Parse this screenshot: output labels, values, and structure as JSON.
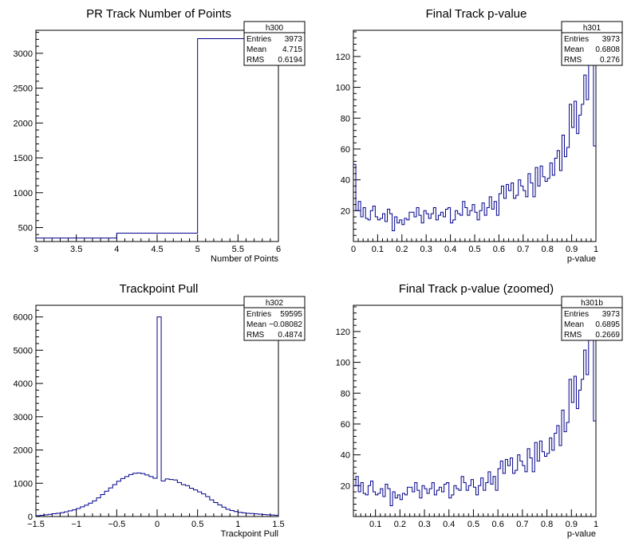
{
  "chart_data": [
    {
      "id": "h300",
      "type": "histogram",
      "title": "PR Track Number of Points",
      "xlabel": "Number of Points",
      "ylabel": "",
      "xlim": [
        3,
        6
      ],
      "ylim": [
        300,
        3330
      ],
      "x_ticks": [
        "3",
        "3.5",
        "4",
        "4.5",
        "5",
        "5.5",
        "6"
      ],
      "x_tick_values": [
        3,
        3.5,
        4,
        4.5,
        5,
        5.5,
        6
      ],
      "y_ticks": [
        "500",
        "1000",
        "1500",
        "2000",
        "2500",
        "3000"
      ],
      "y_tick_values": [
        500,
        1000,
        1500,
        2000,
        2500,
        3000
      ],
      "bins": [
        {
          "x0": 3,
          "x1": 4,
          "y": 350
        },
        {
          "x0": 4,
          "x1": 5,
          "y": 420
        },
        {
          "x0": 5,
          "x1": 6,
          "y": 3210
        }
      ],
      "stats": {
        "name": "h300",
        "rows": [
          [
            "Entries",
            "3973"
          ],
          [
            "Mean",
            "4.715"
          ],
          [
            "RMS",
            "0.6194"
          ]
        ]
      },
      "color": "#00008b"
    },
    {
      "id": "h301",
      "type": "histogram",
      "title": "Final Track p-value",
      "xlabel": "p-value",
      "ylabel": "",
      "xlim": [
        0,
        1
      ],
      "ylim": [
        0,
        137
      ],
      "x_ticks": [
        "0",
        "0.1",
        "0.2",
        "0.3",
        "0.4",
        "0.5",
        "0.6",
        "0.7",
        "0.8",
        "0.9",
        "1"
      ],
      "x_tick_values": [
        0,
        0.1,
        0.2,
        0.3,
        0.4,
        0.5,
        0.6,
        0.7,
        0.8,
        0.9,
        1
      ],
      "y_ticks": [
        "20",
        "40",
        "60",
        "80",
        "100",
        "120"
      ],
      "y_tick_values": [
        20,
        40,
        60,
        80,
        100,
        120
      ],
      "bin_start": 0,
      "bin_width": 0.01,
      "values": [
        50,
        20,
        26,
        16,
        22,
        15,
        14,
        20,
        23,
        16,
        14,
        15,
        18,
        13,
        21,
        18,
        7,
        16,
        12,
        14,
        11,
        15,
        14,
        19,
        19,
        16,
        22,
        17,
        12,
        20,
        18,
        15,
        18,
        22,
        14,
        17,
        19,
        16,
        21,
        22,
        12,
        14,
        20,
        18,
        17,
        26,
        22,
        17,
        20,
        24,
        19,
        14,
        20,
        25,
        17,
        22,
        29,
        21,
        26,
        17,
        31,
        36,
        28,
        37,
        33,
        38,
        28,
        30,
        40,
        36,
        33,
        29,
        44,
        38,
        29,
        48,
        36,
        49,
        42,
        39,
        41,
        51,
        43,
        54,
        59,
        46,
        69,
        55,
        61,
        89,
        74,
        91,
        70,
        82,
        89,
        108,
        92,
        120,
        116,
        62
      ],
      "stats": {
        "name": "h301",
        "rows": [
          [
            "Entries",
            "3973"
          ],
          [
            "Mean",
            "0.6808"
          ],
          [
            "RMS",
            "0.276"
          ]
        ]
      },
      "color": "#00008b"
    },
    {
      "id": "h302",
      "type": "histogram",
      "title": "Trackpoint Pull",
      "xlabel": "Trackpoint Pull",
      "ylabel": "",
      "xlim": [
        -1.5,
        1.5
      ],
      "ylim": [
        0,
        6350
      ],
      "x_ticks": [
        "−1.5",
        "−1",
        "−0.5",
        "0",
        "0.5",
        "1",
        "1.5"
      ],
      "x_tick_values": [
        -1.5,
        -1,
        -0.5,
        0,
        0.5,
        1,
        1.5
      ],
      "y_ticks": [
        "0",
        "1000",
        "2000",
        "3000",
        "4000",
        "5000",
        "6000"
      ],
      "y_tick_values": [
        0,
        1000,
        2000,
        3000,
        4000,
        5000,
        6000
      ],
      "bin_start": -1.5,
      "bin_width": 0.05,
      "values": [
        25,
        35,
        50,
        65,
        85,
        95,
        115,
        140,
        170,
        200,
        240,
        290,
        340,
        400,
        470,
        560,
        660,
        760,
        860,
        960,
        1060,
        1140,
        1200,
        1260,
        1300,
        1310,
        1290,
        1250,
        1200,
        1150,
        6000,
        1070,
        1130,
        1110,
        1100,
        1020,
        960,
        930,
        850,
        800,
        740,
        680,
        600,
        500,
        420,
        350,
        280,
        220,
        180,
        150,
        125,
        110,
        95,
        90,
        80,
        70,
        60,
        50,
        45,
        40
      ],
      "stats": {
        "name": "h302",
        "rows": [
          [
            "Entries",
            "59595"
          ],
          [
            "Mean",
            "−0.08082"
          ],
          [
            "RMS",
            "0.4874"
          ]
        ]
      },
      "color": "#00008b"
    },
    {
      "id": "h301b",
      "type": "histogram",
      "title": "Final Track p-value (zoomed)",
      "xlabel": "p-value",
      "ylabel": "",
      "xlim": [
        0.01,
        1
      ],
      "ylim": [
        0,
        137
      ],
      "x_ticks": [
        "0.1",
        "0.2",
        "0.3",
        "0.4",
        "0.5",
        "0.6",
        "0.7",
        "0.8",
        "0.9",
        "1"
      ],
      "x_tick_values": [
        0.1,
        0.2,
        0.3,
        0.4,
        0.5,
        0.6,
        0.7,
        0.8,
        0.9,
        1
      ],
      "y_ticks": [
        "20",
        "40",
        "60",
        "80",
        "100",
        "120"
      ],
      "y_tick_values": [
        20,
        40,
        60,
        80,
        100,
        120
      ],
      "bin_start": 0.01,
      "bin_width": 0.01,
      "values": [
        20,
        26,
        16,
        22,
        15,
        14,
        20,
        23,
        16,
        14,
        15,
        18,
        13,
        21,
        18,
        7,
        16,
        12,
        14,
        11,
        15,
        14,
        19,
        19,
        16,
        22,
        17,
        12,
        20,
        18,
        15,
        18,
        22,
        14,
        17,
        19,
        16,
        21,
        22,
        12,
        14,
        20,
        18,
        17,
        26,
        22,
        17,
        20,
        24,
        19,
        14,
        20,
        25,
        17,
        22,
        29,
        21,
        26,
        17,
        31,
        36,
        28,
        37,
        33,
        38,
        28,
        30,
        40,
        36,
        33,
        29,
        44,
        38,
        29,
        48,
        36,
        49,
        42,
        39,
        41,
        51,
        43,
        54,
        59,
        46,
        69,
        55,
        61,
        89,
        74,
        91,
        70,
        82,
        89,
        108,
        92,
        120,
        116,
        62
      ],
      "stats": {
        "name": "h301b",
        "rows": [
          [
            "Entries",
            "3973"
          ],
          [
            "Mean",
            "0.6895"
          ],
          [
            "RMS",
            "0.2669"
          ]
        ]
      },
      "color": "#00008b"
    }
  ]
}
